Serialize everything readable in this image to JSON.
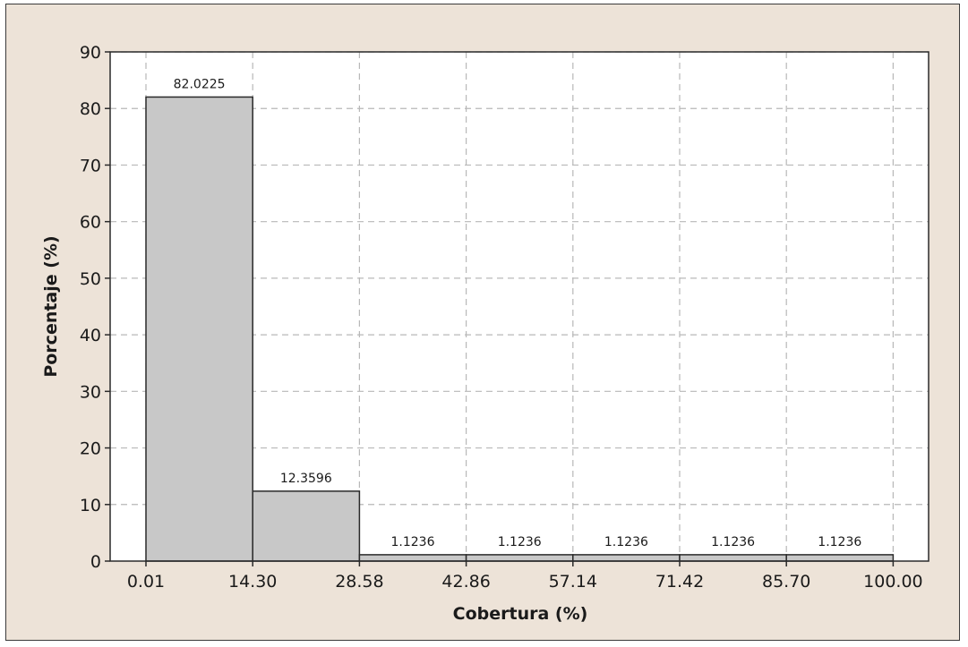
{
  "chart_data": {
    "type": "bar",
    "xlabel": "Cobertura (%)",
    "ylabel": "Porcentaje (%)",
    "x_ticks": [
      "0.01",
      "14.30",
      "28.58",
      "42.86",
      "57.14",
      "71.42",
      "85.70",
      "100.00"
    ],
    "bins": [
      {
        "from": "0.01",
        "to": "14.30",
        "value": 82.0225,
        "label": "82.0225"
      },
      {
        "from": "14.30",
        "to": "28.58",
        "value": 12.3596,
        "label": "12.3596"
      },
      {
        "from": "28.58",
        "to": "42.86",
        "value": 1.1236,
        "label": "1.1236"
      },
      {
        "from": "42.86",
        "to": "57.14",
        "value": 1.1236,
        "label": "1.1236"
      },
      {
        "from": "57.14",
        "to": "71.42",
        "value": 1.1236,
        "label": "1.1236"
      },
      {
        "from": "71.42",
        "to": "85.70",
        "value": 1.1236,
        "label": "1.1236"
      },
      {
        "from": "85.70",
        "to": "100.00",
        "value": 1.1236,
        "label": "1.1236"
      }
    ],
    "y_ticks": [
      0,
      10,
      20,
      30,
      40,
      50,
      60,
      70,
      80,
      90
    ],
    "ylim": [
      0,
      90
    ],
    "grid": true,
    "colors": {
      "bar_fill": "#c8c8c8",
      "bar_stroke": "#2a2a2a",
      "background": "#ede3d8",
      "plot_background": "#ffffff",
      "grid": "#b8b8b8"
    }
  }
}
